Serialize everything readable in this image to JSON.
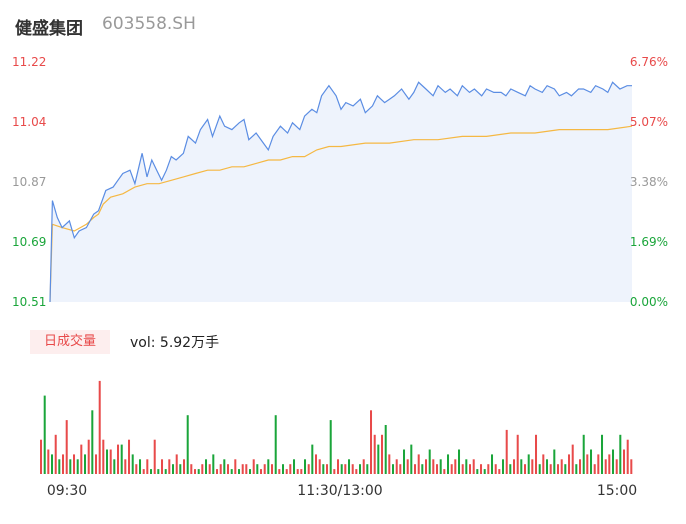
{
  "header": {
    "name": "健盛集团",
    "code": "603558.SH"
  },
  "volume_panel": {
    "tab_label": "日成交量",
    "summary": "vol: 5.92万手"
  },
  "colors": {
    "up": "#e84a4a",
    "down": "#1aa53a",
    "price_line": "#5b8de3",
    "avg_line": "#f5b843",
    "area": "#eef3fc"
  },
  "chart_data": [
    {
      "type": "line",
      "title": "",
      "xlabel": "",
      "ylabel": "",
      "ylim": [
        10.51,
        11.22
      ],
      "y_ticks_left": [
        "11.22",
        "11.04",
        "10.87",
        "10.69",
        "10.51"
      ],
      "y_ticks_right": [
        "6.76%",
        "5.07%",
        "3.38%",
        "1.69%",
        "0.00%"
      ],
      "x_ticks": [
        "09:30",
        "11:30/13:00",
        "15:00"
      ],
      "series": [
        {
          "role": "price",
          "x": [
            0,
            1,
            3,
            5,
            8,
            10,
            12,
            15,
            18,
            20,
            23,
            26,
            28,
            30,
            33,
            35,
            38,
            40,
            42,
            44,
            46,
            48,
            50,
            52,
            55,
            57,
            60,
            62,
            65,
            67,
            70,
            72,
            75,
            78,
            80,
            82,
            85,
            88,
            90,
            92,
            95,
            98,
            100,
            103,
            105,
            108,
            110,
            112,
            115,
            118,
            120,
            122,
            125,
            128,
            130,
            133,
            135,
            138,
            140,
            142,
            145,
            148,
            150,
            152,
            155,
            158,
            160,
            163,
            165,
            168,
            170,
            173,
            175,
            178,
            180,
            183,
            186,
            188,
            190,
            193,
            196,
            198,
            200,
            203,
            205,
            208,
            210,
            213,
            215,
            218,
            220,
            223,
            225,
            228,
            230,
            232,
            235,
            238,
            240
          ],
          "y": [
            10.51,
            10.81,
            10.76,
            10.73,
            10.75,
            10.7,
            10.72,
            10.73,
            10.77,
            10.78,
            10.84,
            10.85,
            10.87,
            10.89,
            10.9,
            10.86,
            10.95,
            10.88,
            10.93,
            10.9,
            10.87,
            10.9,
            10.94,
            10.93,
            10.95,
            11.0,
            10.98,
            11.02,
            11.05,
            11.0,
            11.06,
            11.03,
            11.02,
            11.04,
            11.05,
            10.99,
            11.01,
            10.98,
            10.96,
            11.0,
            11.03,
            11.01,
            11.04,
            11.02,
            11.06,
            11.08,
            11.07,
            11.12,
            11.15,
            11.12,
            11.08,
            11.1,
            11.09,
            11.11,
            11.07,
            11.09,
            11.12,
            11.1,
            11.11,
            11.12,
            11.14,
            11.11,
            11.13,
            11.16,
            11.14,
            11.12,
            11.15,
            11.13,
            11.14,
            11.12,
            11.15,
            11.13,
            11.14,
            11.12,
            11.14,
            11.13,
            11.13,
            11.12,
            11.14,
            11.13,
            11.12,
            11.15,
            11.14,
            11.13,
            11.15,
            11.14,
            11.12,
            11.13,
            11.12,
            11.14,
            11.14,
            11.13,
            11.15,
            11.14,
            11.13,
            11.16,
            11.14,
            11.15,
            11.15
          ]
        },
        {
          "role": "average",
          "x": [
            0,
            1,
            5,
            10,
            15,
            18,
            20,
            22,
            25,
            30,
            35,
            40,
            45,
            50,
            55,
            60,
            65,
            70,
            75,
            80,
            85,
            90,
            95,
            100,
            105,
            110,
            115,
            120,
            130,
            140,
            150,
            160,
            170,
            180,
            190,
            200,
            210,
            220,
            230,
            240
          ],
          "y": [
            10.51,
            10.74,
            10.73,
            10.72,
            10.74,
            10.76,
            10.77,
            10.8,
            10.82,
            10.83,
            10.85,
            10.86,
            10.86,
            10.87,
            10.88,
            10.89,
            10.9,
            10.9,
            10.91,
            10.91,
            10.92,
            10.93,
            10.93,
            10.94,
            10.94,
            10.96,
            10.97,
            10.97,
            10.98,
            10.98,
            10.99,
            10.99,
            11.0,
            11.0,
            11.01,
            11.01,
            11.02,
            11.02,
            11.02,
            11.03
          ]
        }
      ]
    },
    {
      "type": "bar",
      "title": "",
      "xlabel": "",
      "ylabel": "",
      "x_ticks": [
        "09:30",
        "11:30/13:00",
        "15:00"
      ],
      "ylim": [
        0,
        100
      ],
      "values": [
        35,
        80,
        25,
        20,
        40,
        15,
        20,
        55,
        15,
        20,
        15,
        30,
        20,
        35,
        65,
        20,
        95,
        35,
        25,
        25,
        15,
        30,
        30,
        15,
        35,
        20,
        10,
        15,
        5,
        15,
        5,
        35,
        5,
        15,
        5,
        15,
        10,
        20,
        10,
        15,
        60,
        10,
        5,
        5,
        10,
        15,
        10,
        20,
        5,
        10,
        15,
        10,
        5,
        15,
        5,
        10,
        10,
        5,
        15,
        10,
        5,
        10,
        15,
        10,
        60,
        5,
        10,
        5,
        10,
        15,
        5,
        5,
        15,
        10,
        30,
        20,
        15,
        10,
        10,
        55,
        5,
        15,
        10,
        10,
        15,
        10,
        5,
        10,
        15,
        10,
        65,
        40,
        30,
        40,
        50,
        20,
        10,
        15,
        10,
        25,
        15,
        30,
        10,
        20,
        10,
        15,
        25,
        15,
        10,
        15,
        5,
        20,
        10,
        15,
        25,
        10,
        15,
        10,
        15,
        5,
        10,
        5,
        10,
        20,
        10,
        5,
        15,
        45,
        10,
        15,
        40,
        15,
        10,
        20,
        15,
        40,
        10,
        20,
        15,
        10,
        25,
        10,
        15,
        10,
        20,
        30,
        10,
        15,
        40,
        20,
        25,
        10,
        20,
        40,
        15,
        20,
        25,
        15,
        40,
        25,
        35,
        15
      ],
      "directions": [
        "up",
        "down",
        "up",
        "down",
        "up",
        "down",
        "up",
        "up",
        "down",
        "up",
        "down",
        "up",
        "down",
        "up",
        "down",
        "up",
        "up",
        "up",
        "down",
        "up",
        "down",
        "up",
        "down",
        "up",
        "up",
        "down",
        "up",
        "down",
        "up",
        "up",
        "down",
        "up",
        "down",
        "up",
        "down",
        "up",
        "down",
        "up",
        "down",
        "up",
        "down",
        "up",
        "up",
        "down",
        "up",
        "down",
        "up",
        "down",
        "up",
        "up",
        "down",
        "up",
        "down",
        "up",
        "down",
        "up",
        "up",
        "down",
        "up",
        "down",
        "up",
        "up",
        "down",
        "up",
        "down",
        "up",
        "down",
        "up",
        "up",
        "down",
        "up",
        "up",
        "down",
        "up",
        "down",
        "up",
        "up",
        "down",
        "up",
        "down",
        "up",
        "up",
        "down",
        "up",
        "down",
        "up",
        "up",
        "down",
        "up",
        "down",
        "up",
        "up",
        "down",
        "up",
        "down",
        "up",
        "down",
        "up",
        "up",
        "down",
        "up",
        "down",
        "up",
        "up",
        "down",
        "up",
        "down",
        "up",
        "up",
        "down",
        "up",
        "down",
        "up",
        "up",
        "down",
        "up",
        "down",
        "up",
        "up",
        "down",
        "up",
        "down",
        "up",
        "down",
        "up",
        "up",
        "down",
        "up",
        "down",
        "up",
        "up",
        "down",
        "up",
        "down",
        "up",
        "up",
        "down",
        "up",
        "down",
        "up",
        "down",
        "up",
        "up",
        "down",
        "up",
        "up",
        "down",
        "up",
        "down",
        "up",
        "down",
        "up",
        "up",
        "down",
        "up",
        "up",
        "down",
        "up",
        "down",
        "up",
        "up",
        "up"
      ]
    }
  ]
}
